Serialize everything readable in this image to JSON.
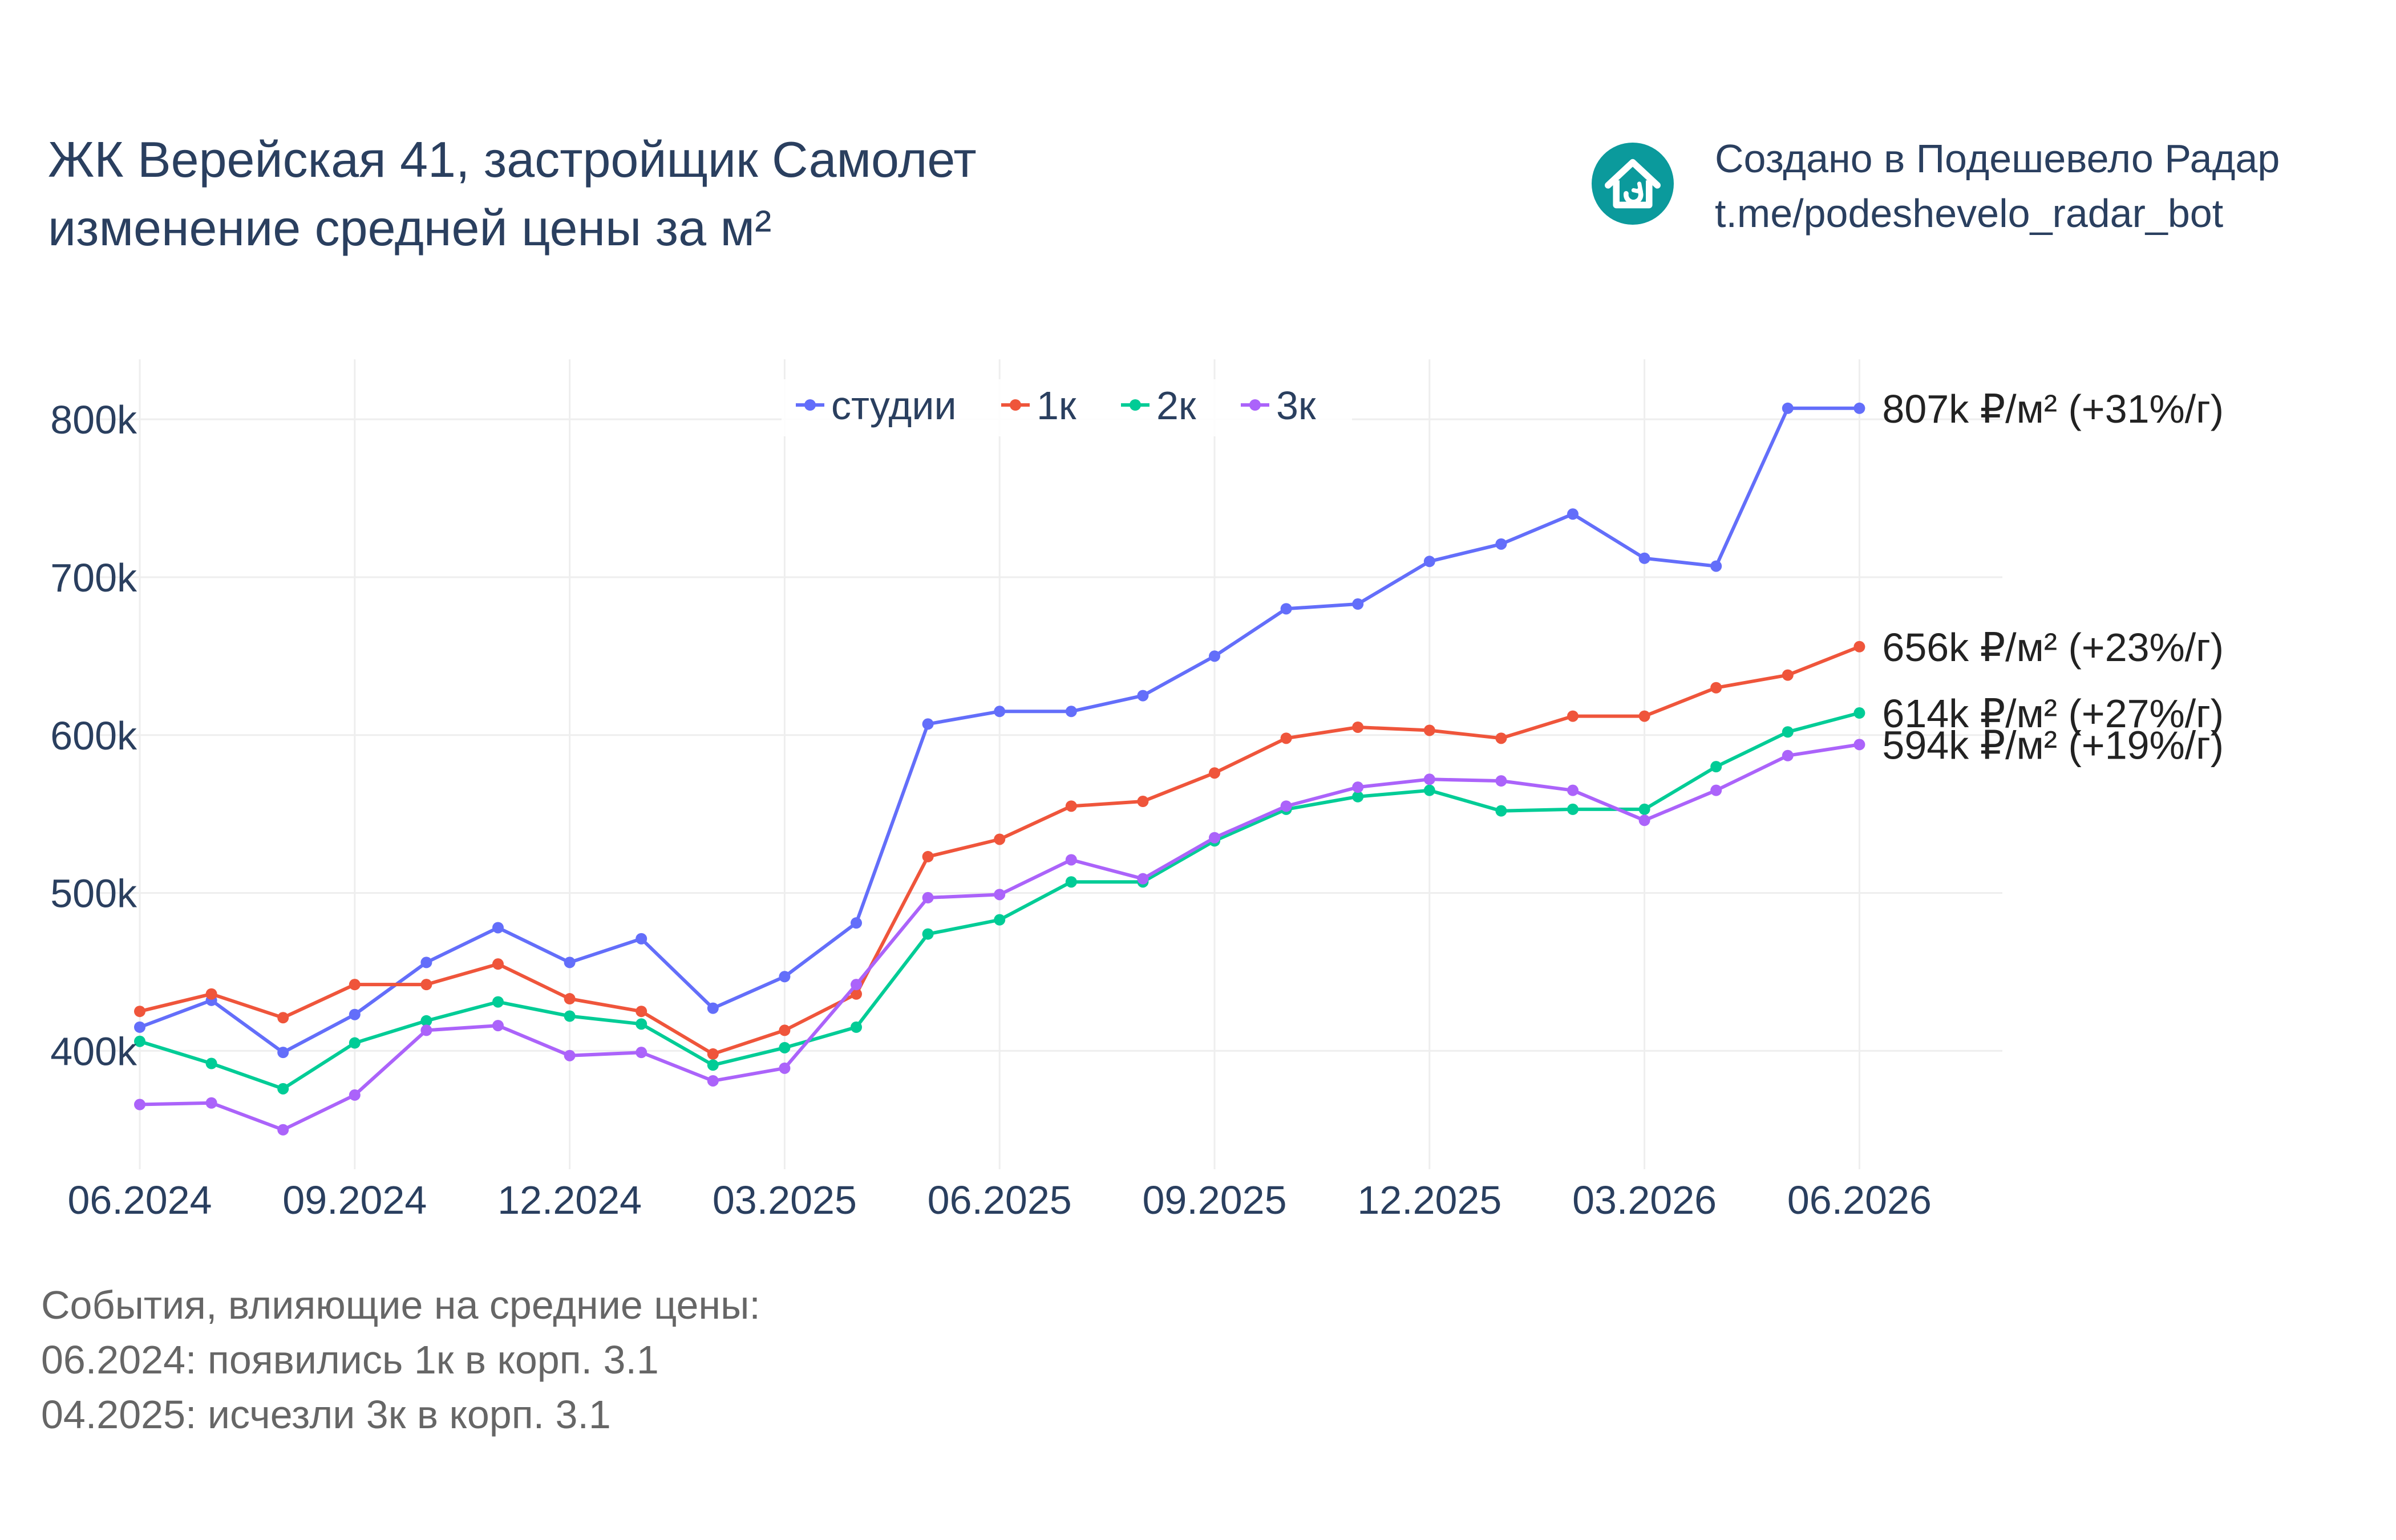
{
  "header": {
    "title_line1": "ЖК Верейская 41, застройщик Самолет",
    "title_line2": "изменение средней цены за м²"
  },
  "brand": {
    "line1": "Создано в Подешевело Радар",
    "line2": "t.me/podeshevelo_radar_bot",
    "logo_icon": "house-icon",
    "logo_color": "#0b9a9c"
  },
  "events": {
    "heading": "События, влияющие на средние цены:",
    "items": [
      "06.2024: появились 1к в корп. 3.1",
      "04.2025: исчезли 3к в корп. 3.1"
    ]
  },
  "chart_data": {
    "type": "line",
    "x": [
      "06.2024",
      "07.2024",
      "08.2024",
      "09.2024",
      "10.2024",
      "11.2024",
      "12.2024",
      "01.2025",
      "02.2025",
      "03.2025",
      "04.2025",
      "05.2025",
      "06.2025",
      "07.2025",
      "08.2025",
      "09.2025",
      "10.2025",
      "11.2025",
      "12.2025",
      "01.2026",
      "02.2026",
      "03.2026",
      "04.2026",
      "05.2026",
      "06.2026"
    ],
    "x_ticks": [
      "06.2024",
      "09.2024",
      "12.2024",
      "03.2025",
      "06.2025",
      "09.2025",
      "12.2025",
      "03.2026",
      "06.2026"
    ],
    "y_ticks": [
      400000,
      500000,
      600000,
      700000,
      800000
    ],
    "y_tick_labels": [
      "400k",
      "500k",
      "600k",
      "700k",
      "800k"
    ],
    "ylim": [
      325000,
      838000
    ],
    "grid": true,
    "legend_position": "top-center",
    "series": [
      {
        "name": "студии",
        "color": "#636efa",
        "values": [
          415000,
          432000,
          399000,
          423000,
          456000,
          478000,
          456000,
          471000,
          427000,
          447000,
          481000,
          607000,
          615000,
          615000,
          625000,
          650000,
          680000,
          683000,
          710000,
          721000,
          740000,
          712000,
          707000,
          807000,
          807000
        ],
        "end_label": "807k ₽/м² (+31%/г)"
      },
      {
        "name": "1к",
        "color": "#ef553b",
        "values": [
          425000,
          436000,
          421000,
          442000,
          442000,
          455000,
          433000,
          425000,
          398000,
          413000,
          436000,
          523000,
          534000,
          555000,
          558000,
          576000,
          598000,
          605000,
          603000,
          598000,
          612000,
          612000,
          630000,
          638000,
          656000
        ],
        "end_label": "656k ₽/м² (+23%/г)"
      },
      {
        "name": "2к",
        "color": "#00cc96",
        "values": [
          406000,
          392000,
          376000,
          405000,
          419000,
          431000,
          422000,
          417000,
          391000,
          402000,
          415000,
          474000,
          483000,
          507000,
          507000,
          533000,
          553000,
          561000,
          565000,
          552000,
          553000,
          553000,
          580000,
          602000,
          614000
        ],
        "end_label": "614k ₽/м² (+27%/г)"
      },
      {
        "name": "3к",
        "color": "#ab63fa",
        "values": [
          366000,
          367000,
          350000,
          372000,
          413000,
          416000,
          397000,
          399000,
          381000,
          389000,
          442000,
          497000,
          499000,
          521000,
          509000,
          535000,
          555000,
          567000,
          572000,
          571000,
          565000,
          546000,
          565000,
          587000,
          594000
        ],
        "end_label": "594k ₽/м² (+19%/г)"
      }
    ]
  }
}
